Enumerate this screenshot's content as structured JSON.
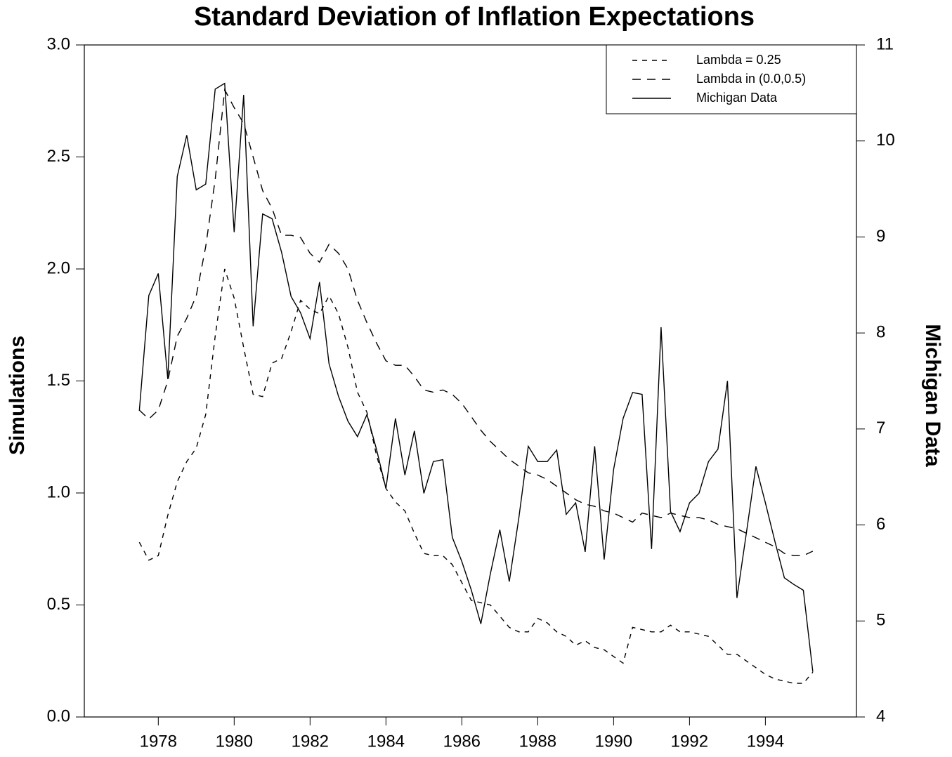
{
  "chart_data": {
    "type": "line",
    "title": "Standard Deviation of Inflation Expectations",
    "y_label": "Simulations",
    "y2_label": "Michigan Data",
    "x": [
      1977.5,
      1977.75,
      1978,
      1978.25,
      1978.5,
      1978.75,
      1979,
      1979.25,
      1979.5,
      1979.75,
      1980,
      1980.25,
      1980.5,
      1980.75,
      1981,
      1981.25,
      1981.5,
      1981.75,
      1982,
      1982.25,
      1982.5,
      1982.75,
      1983,
      1983.25,
      1983.5,
      1983.75,
      1984,
      1984.25,
      1984.5,
      1984.75,
      1985,
      1985.25,
      1985.5,
      1985.75,
      1986,
      1986.25,
      1986.5,
      1986.75,
      1987,
      1987.25,
      1987.5,
      1987.75,
      1988,
      1988.25,
      1988.5,
      1988.75,
      1989,
      1989.25,
      1989.5,
      1989.75,
      1990,
      1990.25,
      1990.5,
      1990.75,
      1991,
      1991.25,
      1991.5,
      1991.75,
      1992,
      1992.25,
      1992.5,
      1992.75,
      1993,
      1993.25,
      1993.5,
      1993.75,
      1994,
      1994.25,
      1994.5,
      1994.75,
      1995,
      1995.25
    ],
    "series": [
      {
        "name": "Lambda = 0.25",
        "color": "#000000",
        "line_style": "short-dash",
        "axis": "y",
        "values": [
          0.78,
          0.7,
          0.72,
          0.9,
          1.05,
          1.14,
          1.2,
          1.35,
          1.7,
          2.0,
          1.87,
          1.65,
          1.44,
          1.43,
          1.58,
          1.6,
          1.72,
          1.86,
          1.82,
          1.8,
          1.88,
          1.8,
          1.65,
          1.45,
          1.36,
          1.17,
          1.02,
          0.96,
          0.92,
          0.82,
          0.73,
          0.72,
          0.72,
          0.68,
          0.6,
          0.52,
          0.51,
          0.5,
          0.45,
          0.4,
          0.38,
          0.38,
          0.44,
          0.42,
          0.38,
          0.36,
          0.32,
          0.34,
          0.31,
          0.3,
          0.27,
          0.24,
          0.4,
          0.39,
          0.38,
          0.38,
          0.41,
          0.38,
          0.38,
          0.37,
          0.36,
          0.32,
          0.28,
          0.28,
          0.25,
          0.22,
          0.19,
          0.17,
          0.16,
          0.15,
          0.15,
          0.2
        ]
      },
      {
        "name": "Lambda in (0.0,0.5)",
        "color": "#000000",
        "line_style": "long-dash",
        "axis": "y",
        "values": [
          1.37,
          1.33,
          1.37,
          1.5,
          1.7,
          1.78,
          1.88,
          2.1,
          2.4,
          2.8,
          2.72,
          2.65,
          2.5,
          2.35,
          2.27,
          2.15,
          2.15,
          2.14,
          2.07,
          2.03,
          2.11,
          2.07,
          2.0,
          1.86,
          1.76,
          1.67,
          1.59,
          1.57,
          1.57,
          1.52,
          1.46,
          1.45,
          1.46,
          1.44,
          1.4,
          1.34,
          1.28,
          1.23,
          1.19,
          1.15,
          1.12,
          1.09,
          1.08,
          1.06,
          1.03,
          1.0,
          0.97,
          0.95,
          0.94,
          0.92,
          0.91,
          0.89,
          0.87,
          0.91,
          0.9,
          0.89,
          0.91,
          0.9,
          0.89,
          0.89,
          0.88,
          0.86,
          0.85,
          0.84,
          0.82,
          0.8,
          0.78,
          0.76,
          0.73,
          0.72,
          0.72,
          0.74
        ]
      },
      {
        "name": "Michigan Data",
        "color": "#000000",
        "line_style": "solid",
        "axis": "y2",
        "values": [
          7.19,
          8.39,
          8.62,
          7.52,
          9.63,
          10.06,
          9.49,
          9.55,
          10.54,
          10.6,
          9.05,
          10.48,
          8.07,
          9.24,
          9.19,
          8.84,
          8.38,
          8.21,
          7.94,
          8.53,
          7.68,
          7.34,
          7.08,
          6.92,
          7.15,
          6.79,
          6.38,
          7.11,
          6.52,
          6.98,
          6.33,
          6.66,
          6.68,
          5.87,
          5.62,
          5.32,
          4.97,
          5.49,
          5.95,
          5.41,
          6.07,
          6.82,
          6.66,
          6.66,
          6.78,
          6.11,
          6.23,
          5.72,
          6.82,
          5.64,
          6.58,
          7.11,
          7.38,
          7.36,
          5.75,
          8.06,
          6.14,
          5.93,
          6.23,
          6.33,
          6.66,
          6.79,
          7.5,
          5.24,
          5.92,
          6.61,
          6.23,
          5.83,
          5.45,
          5.38,
          5.32,
          4.47
        ]
      }
    ],
    "xlim": [
      1976.05,
      1996.4
    ],
    "xticks": [
      1978,
      1980,
      1982,
      1984,
      1986,
      1988,
      1990,
      1992,
      1994
    ],
    "ylim": [
      0,
      3
    ],
    "yticks": [
      {
        "value": 0,
        "label": "0.0"
      },
      0.5,
      {
        "value": 1,
        "label": "1.0"
      },
      1.5,
      {
        "value": 2,
        "label": "2.0"
      },
      2.5,
      {
        "value": 3,
        "label": "3.0"
      }
    ],
    "y2lim": [
      4,
      11
    ],
    "y2ticks": [
      4,
      5,
      6,
      7,
      8,
      9,
      10,
      11
    ],
    "grid": false,
    "legend_position": "top-right"
  }
}
